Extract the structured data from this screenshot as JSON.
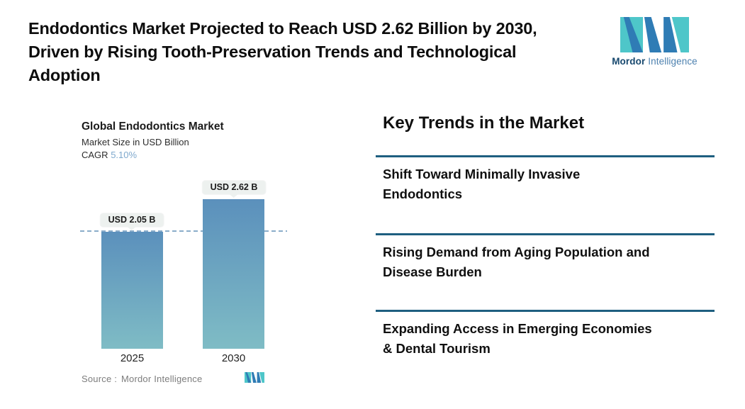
{
  "header": {
    "title_lines": [
      "Endodontics Market Projected to Reach USD 2.62 Billion by 2030,",
      "Driven by Rising Tooth-Preservation Trends and Technological",
      "Adoption"
    ]
  },
  "logo": {
    "mark_icon": "mordor-intelligence-m-icon",
    "name_bold": "Mordor",
    "name_light": "Intelligence"
  },
  "chart": {
    "title": "Global Endodontics Market",
    "subtitle": "Market Size in USD Billion",
    "cagr_label": "CAGR",
    "cagr_value": "5.10%",
    "source_label": "Source :",
    "source_value": "Mordor Intelligence"
  },
  "chart_data": {
    "type": "bar",
    "title": "Global Endodontics Market",
    "ylabel": "Market Size in USD Billion",
    "cagr_percent": "5.10%",
    "categories": [
      "2025",
      "2030"
    ],
    "values": [
      2.05,
      2.62
    ],
    "bar_labels": [
      "USD 2.05 B",
      "USD 2.62 B"
    ],
    "ylim": [
      0,
      2.62
    ],
    "reference_line": 2.05,
    "grid": false,
    "legend": false,
    "source": "Mordor Intelligence"
  },
  "trends": {
    "heading": "Key Trends in the Market",
    "items": [
      {
        "text": "Shift Toward Minimally Invasive Endodontics",
        "lines": [
          "Shift Toward Minimally Invasive",
          "Endodontics"
        ]
      },
      {
        "text": "Rising Demand from Aging Population and Disease Burden",
        "lines": [
          "Rising Demand from Aging Population and",
          "Disease Burden"
        ]
      },
      {
        "text": "Expanding Access in Emerging Economies & Dental Tourism",
        "lines": [
          "Expanding Access in Emerging Economies",
          "& Dental Tourism"
        ]
      }
    ]
  },
  "colors": {
    "teal": "#4ec6c9",
    "blue": "#2f7cb5",
    "brand-navy": "#17486e",
    "brand-blue": "#4d81af",
    "divider": "#1e5f80",
    "dash": "#8aadca",
    "bar-top": "#5b90bc",
    "bar-bottom": "#7fbcc5",
    "cagr": "#7fa9cd",
    "pill-bg": "#edf1ef",
    "text-dark": "#0d0d0d",
    "text-gray": "#7d7d7d"
  }
}
